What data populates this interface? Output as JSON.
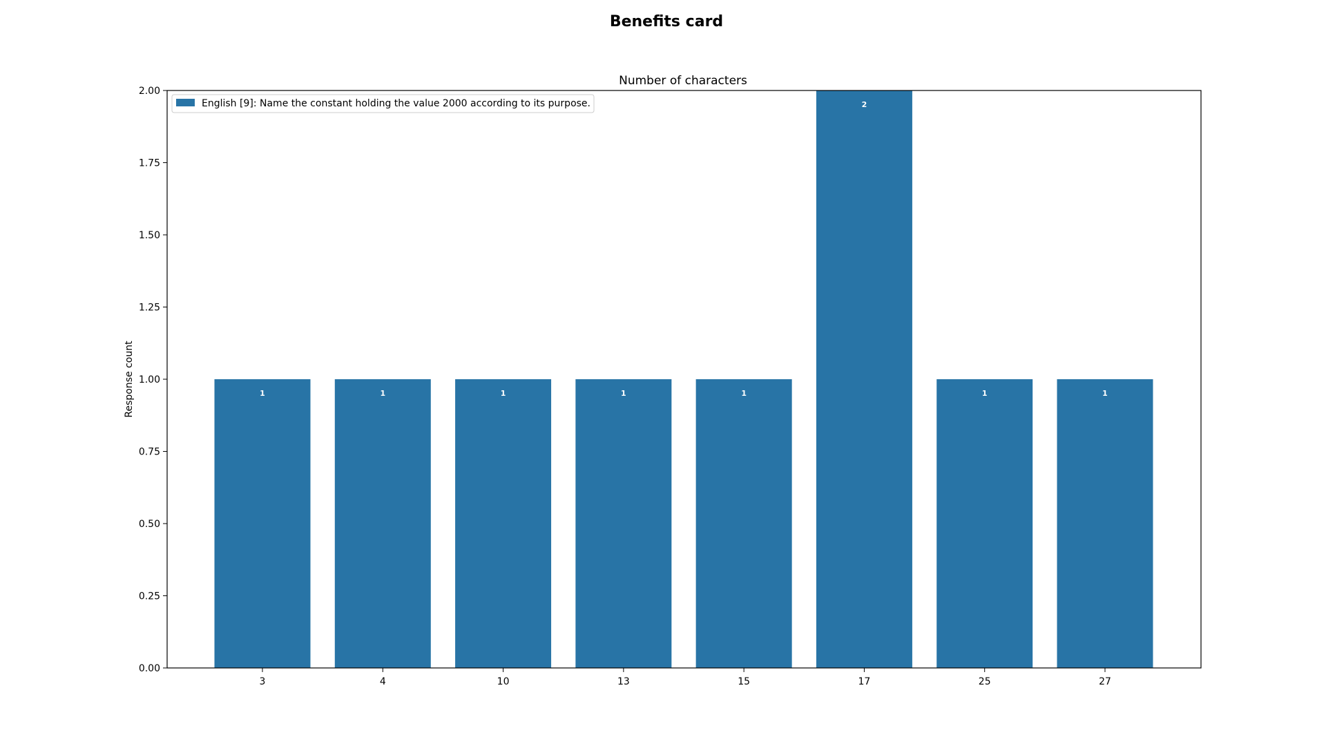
{
  "figure": {
    "suptitle": "Benefits card"
  },
  "chart_data": {
    "type": "bar",
    "title": "Number of characters",
    "xlabel": "",
    "ylabel": "Response count",
    "categories": [
      "3",
      "4",
      "10",
      "13",
      "15",
      "17",
      "25",
      "27"
    ],
    "series": [
      {
        "name": "English [9]: Name the constant holding the value 2000 according to its purpose.",
        "values": [
          1,
          1,
          1,
          1,
          1,
          2,
          1,
          1
        ],
        "color": "#2874a6"
      }
    ],
    "data_labels": [
      "1",
      "1",
      "1",
      "1",
      "1",
      "2",
      "1",
      "1"
    ],
    "ylim": [
      0,
      2
    ],
    "yticks": [
      "0.00",
      "0.25",
      "0.50",
      "0.75",
      "1.00",
      "1.25",
      "1.50",
      "1.75",
      "2.00"
    ],
    "grid": false,
    "legend_position": "top-left"
  }
}
